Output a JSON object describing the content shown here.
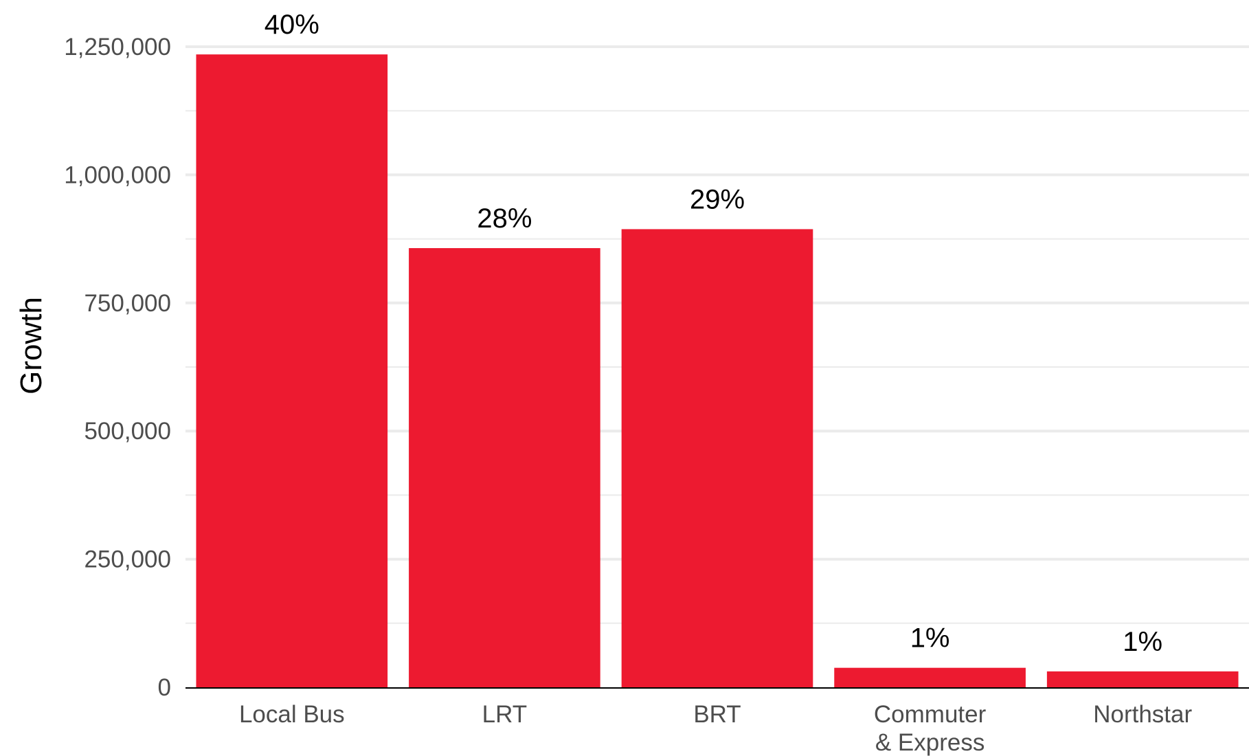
{
  "chart_data": {
    "type": "bar",
    "categories": [
      [
        "Local Bus"
      ],
      [
        "LRT"
      ],
      [
        "BRT"
      ],
      [
        "Commuter",
        "& Express"
      ],
      [
        "Northstar"
      ]
    ],
    "values": [
      1235000,
      857000,
      894000,
      38000,
      31000
    ],
    "data_labels": [
      "40%",
      "28%",
      "29%",
      "1%",
      "1%"
    ],
    "ylabel": "Growth",
    "xlabel": "",
    "ylim": [
      0,
      1250000
    ],
    "yticks": [
      0,
      250000,
      500000,
      750000,
      1000000,
      1250000
    ],
    "ytick_labels": [
      "0",
      "250,000",
      "500,000",
      "750,000",
      "1,000,000",
      "1,250,000"
    ],
    "grid": true,
    "legend": "none",
    "colors": {
      "bar": "#ED1A30",
      "grid": "#EBEBEB",
      "axis": "#000000"
    }
  }
}
